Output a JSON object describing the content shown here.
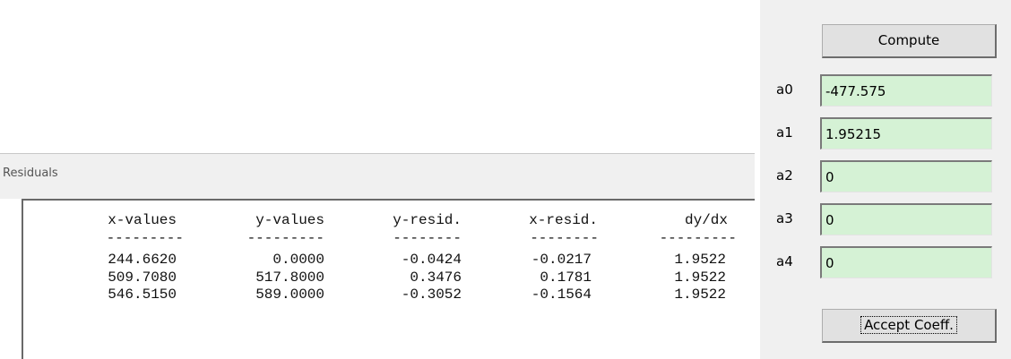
{
  "residuals": {
    "title": "Residuals",
    "headers": [
      "x-values",
      "y-values",
      "y-resid.",
      "x-resid.",
      "dy/dx"
    ],
    "separators": [
      "---------",
      "---------",
      "--------",
      "--------",
      "---------"
    ],
    "rows": [
      [
        "244.6620",
        "0.0000",
        "-0.0424",
        "-0.0217",
        "1.9522"
      ],
      [
        "509.7080",
        "517.8000",
        "0.3476",
        "0.1781",
        "1.9522"
      ],
      [
        "546.5150",
        "589.0000",
        "-0.3052",
        "-0.1564",
        "1.9522"
      ]
    ]
  },
  "panel": {
    "compute": "Compute",
    "coefficients": [
      {
        "label": "a0",
        "value": "-477.575"
      },
      {
        "label": "a1",
        "value": "1.95215"
      },
      {
        "label": "a2",
        "value": "0"
      },
      {
        "label": "a3",
        "value": "0"
      },
      {
        "label": "a4",
        "value": "0"
      }
    ],
    "accept": "Accept Coeff."
  }
}
